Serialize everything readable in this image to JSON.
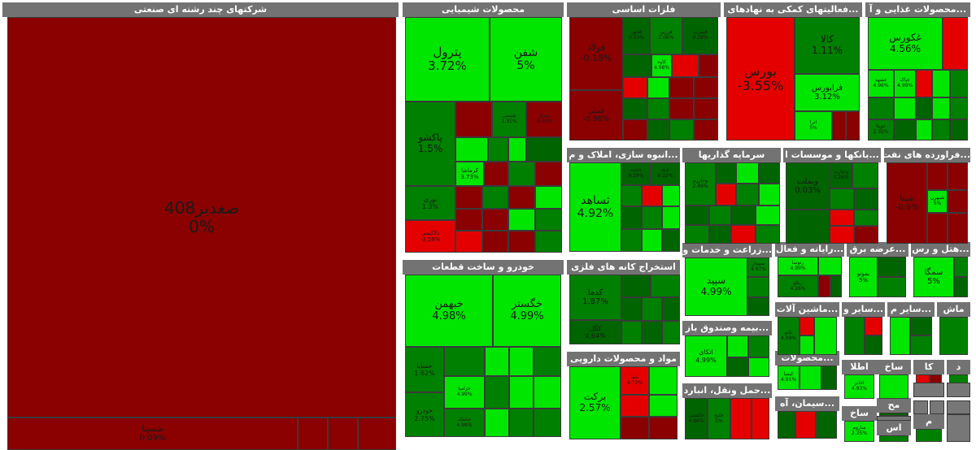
{
  "colors": {
    "dark_red": "#8b0000",
    "red": "#e50000",
    "dark_green": "#006400",
    "green": "#008000",
    "light_green": "#00e600",
    "header_gray": "#737373"
  },
  "sectors": [
    {
      "id": "s1",
      "title": "شرکتهای چند رشته ای صنعتی"
    },
    {
      "id": "s2",
      "title": "محصولات شیمیایی"
    },
    {
      "id": "s3",
      "title": "فلزات اساسی"
    },
    {
      "id": "s4",
      "title": "...فعالیتهای کمکی به نهادهای"
    },
    {
      "id": "s5",
      "title": "...محصولات غذایی و آ"
    },
    {
      "id": "s6",
      "title": "...انبوه سازی، املاک و م"
    },
    {
      "id": "s7",
      "title": "سرمایه گذاریها"
    },
    {
      "id": "s8",
      "title": "...بانکها و موسسات ا"
    },
    {
      "id": "s9",
      "title": "...فراورده های نفت"
    },
    {
      "id": "s10",
      "title": "خودرو و ساخت قطعات"
    },
    {
      "id": "s11",
      "title": "استخراج کانه های فلزی"
    },
    {
      "id": "s12",
      "title": "...زراعت و خدمات وا"
    },
    {
      "id": "s13",
      "title": "...رایانه و فعال"
    },
    {
      "id": "s14",
      "title": "...عرضه برق"
    },
    {
      "id": "s15",
      "title": "...هتل و رس"
    },
    {
      "id": "s16",
      "title": "...ماشین آلات"
    },
    {
      "id": "s17",
      "title": "...سایر و"
    },
    {
      "id": "s18",
      "title": "...سایر م"
    },
    {
      "id": "s19",
      "title": "ماش"
    },
    {
      "id": "s20",
      "title": "...بیمه وصندوق باز"
    },
    {
      "id": "s21",
      "title": "...محصولات"
    },
    {
      "id": "s22",
      "title": "مواد و محصولات دارویی"
    },
    {
      "id": "s23",
      "title": "...حمل ونقل، انبارد"
    },
    {
      "id": "s24",
      "title": "...سیمان، آه"
    },
    {
      "id": "s25",
      "title": "اطلا"
    },
    {
      "id": "s26",
      "title": "ساخ"
    },
    {
      "id": "s27",
      "title": "کا"
    },
    {
      "id": "s28",
      "title": "د"
    },
    {
      "id": "s29",
      "title": "مح"
    },
    {
      "id": "s30",
      "title": "ساخ"
    },
    {
      "id": "s31",
      "title": "م"
    },
    {
      "id": "s32",
      "title": "اس"
    }
  ],
  "tiles": [
    {
      "symbol": "صغدیر408",
      "change": "0%"
    },
    {
      "symbol": "شسینا",
      "change": "0.09%"
    },
    {
      "symbol": "پترول",
      "change": "3.72%"
    },
    {
      "symbol": "شفن",
      "change": "5%"
    },
    {
      "symbol": "پاکشو",
      "change": "1.5%"
    },
    {
      "symbol": "نوری",
      "change": "1.3%"
    },
    {
      "symbol": "ذلاکیمی",
      "change": "-3.59%"
    },
    {
      "symbol": "کرماشا",
      "change": "3.73%"
    },
    {
      "symbol": "فخوز",
      "change": "-0.3%"
    },
    {
      "symbol": "شیمپی",
      "change": "1.31%"
    },
    {
      "symbol": "شراز",
      "change": "-0.43%"
    },
    {
      "symbol": "فولاد",
      "change": "-0.18%"
    },
    {
      "symbol": "فملی",
      "change": "-0.98%"
    },
    {
      "symbol": "فخوز",
      "change": "0.03%"
    },
    {
      "symbol": "فزرین",
      "change": "2.06%"
    },
    {
      "symbol": "فسرب",
      "change": "0.28%"
    },
    {
      "symbol": "کاوه",
      "change": "4.98%"
    },
    {
      "symbol": "بورس",
      "change": "-3.55%"
    },
    {
      "symbol": "کالا",
      "change": "1.11%"
    },
    {
      "symbol": "فرابورس",
      "change": "3.12%"
    },
    {
      "symbol": "اترا",
      "change": "5%"
    },
    {
      "symbol": "غکورس",
      "change": "4.56%"
    },
    {
      "symbol": "غشهد",
      "change": "4.96%"
    },
    {
      "symbol": "غپاک",
      "change": "4.99%"
    },
    {
      "symbol": "غویتا",
      "change": "2.35%"
    },
    {
      "symbol": "ثاخت",
      "change": "0.28%"
    },
    {
      "symbol": "ثاباد",
      "change": "0.12%"
    },
    {
      "symbol": "ثساهد",
      "change": "4.92%"
    },
    {
      "symbol": "وخارزم",
      "change": "2.49%"
    },
    {
      "symbol": "وبملت",
      "change": "0.03%"
    },
    {
      "symbol": "وتجارت",
      "change": "3.26%"
    },
    {
      "symbol": "شپنا",
      "change": "-0.9%"
    },
    {
      "symbol": "شبهرن",
      "change": "5%"
    },
    {
      "symbol": "خبهمن",
      "change": "4.98%"
    },
    {
      "symbol": "خگستر",
      "change": "4.99%"
    },
    {
      "symbol": "خساپا",
      "change": "1.62%"
    },
    {
      "symbol": "خودرو",
      "change": "2.75%"
    },
    {
      "symbol": "خکمک",
      "change": "4.99%"
    },
    {
      "symbol": "خزامیا",
      "change": "4.99%"
    },
    {
      "symbol": "کدما",
      "change": "1.87%"
    },
    {
      "symbol": "کگل",
      "change": "4.64%"
    },
    {
      "symbol": "سپید",
      "change": "4.99%"
    },
    {
      "symbol": "سپیدار",
      "change": "4.97%"
    },
    {
      "symbol": "رتوسا",
      "change": "4.99%"
    },
    {
      "symbol": "رتکو",
      "change": "4.26%"
    },
    {
      "symbol": "بموتو",
      "change": "5%"
    },
    {
      "symbol": "سمگا",
      "change": "5%"
    },
    {
      "symbol": "تکنو",
      "change": "4.99%"
    },
    {
      "symbol": "انتکو",
      "change": "4.99%"
    },
    {
      "symbol": "اتکای",
      "change": "4.99%"
    },
    {
      "symbol": "کیمیا",
      "change": "4.91%"
    },
    {
      "symbol": "برکت",
      "change": "2.57%"
    },
    {
      "symbol": "شفا",
      "change": "4.72%"
    },
    {
      "symbol": "حکشتی",
      "change": "4.96%"
    },
    {
      "symbol": "خلیج",
      "change": "5%"
    },
    {
      "symbol": "ساروم",
      "change": "2.25%"
    },
    {
      "symbol": "اخابر",
      "change": "4.93%"
    }
  ]
}
